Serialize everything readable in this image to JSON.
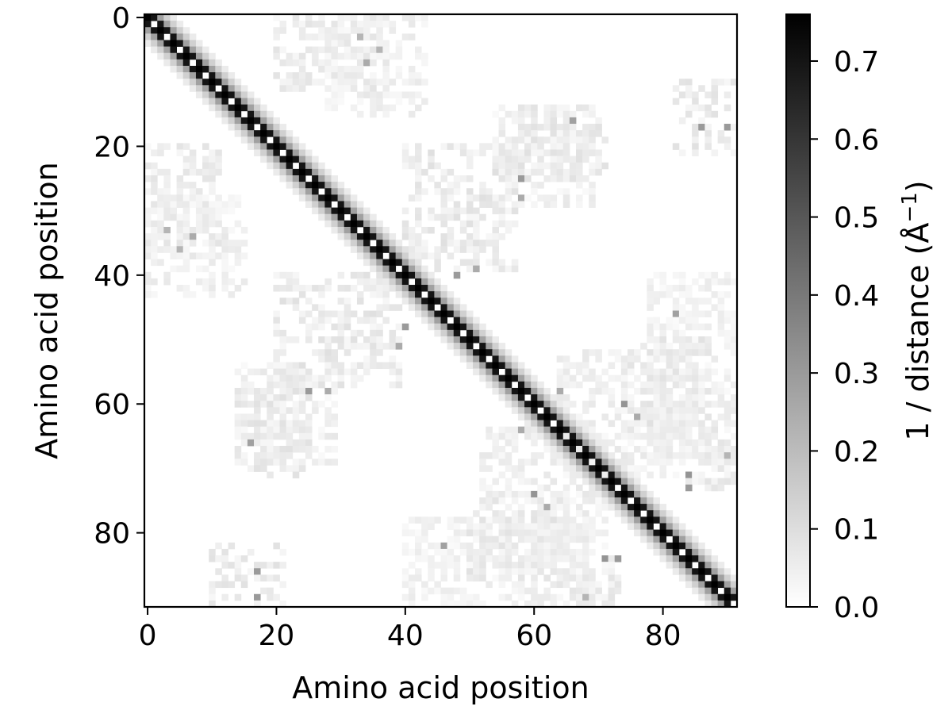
{
  "chart_data": {
    "type": "heatmap",
    "n": 92,
    "xlabel": "Amino acid position",
    "ylabel": "Amino acid position",
    "xticks": [
      0,
      20,
      40,
      60,
      80
    ],
    "yticks": [
      0,
      20,
      40,
      60,
      80
    ],
    "colorbar": {
      "label": "1 / distance (Å",
      "label_superscript": "−1",
      "label_suffix": ")",
      "ticks": [
        "0.0",
        "0.1",
        "0.2",
        "0.3",
        "0.4",
        "0.5",
        "0.6",
        "0.7"
      ],
      "vmin": 0.0,
      "vmax": 0.76,
      "colormap": "greys"
    },
    "contacts": [
      [
        0,
        0.76,
        1
      ],
      [
        1,
        0.45,
        3
      ],
      [
        2,
        0.28,
        5
      ],
      [
        3,
        0.14,
        7
      ],
      [
        4,
        0.06,
        10
      ]
    ],
    "contact_regions": [
      [
        20,
        38,
        0,
        12,
        0.08
      ],
      [
        0,
        16,
        28,
        44,
        0.07
      ],
      [
        40,
        58,
        20,
        40,
        0.09
      ],
      [
        58,
        72,
        14,
        26,
        0.09
      ],
      [
        14,
        30,
        54,
        70,
        0.07
      ],
      [
        50,
        66,
        74,
        88,
        0.09
      ],
      [
        64,
        84,
        52,
        72,
        0.07
      ],
      [
        40,
        70,
        78,
        92,
        0.06
      ],
      [
        82,
        92,
        10,
        22,
        0.09
      ],
      [
        84,
        92,
        64,
        74,
        0.08
      ]
    ],
    "strong_contacts": [
      [
        34,
        7,
        0.25
      ],
      [
        36,
        5,
        0.22
      ],
      [
        33,
        3,
        0.22
      ],
      [
        25,
        58,
        0.3
      ],
      [
        28,
        58,
        0.25
      ],
      [
        40,
        48,
        0.3
      ],
      [
        39,
        51,
        0.25
      ],
      [
        48,
        40,
        0.3
      ],
      [
        51,
        39,
        0.25
      ],
      [
        58,
        25,
        0.3
      ],
      [
        60,
        74,
        0.32
      ],
      [
        64,
        58,
        0.25
      ],
      [
        66,
        16,
        0.28
      ],
      [
        68,
        90,
        0.22
      ],
      [
        73,
        84,
        0.3
      ],
      [
        76,
        62,
        0.25
      ],
      [
        82,
        46,
        0.28
      ],
      [
        84,
        71,
        0.32
      ],
      [
        90,
        17,
        0.3
      ],
      [
        86,
        17,
        0.3
      ],
      [
        17,
        86,
        0.25
      ],
      [
        25,
        58,
        0.3
      ]
    ]
  }
}
